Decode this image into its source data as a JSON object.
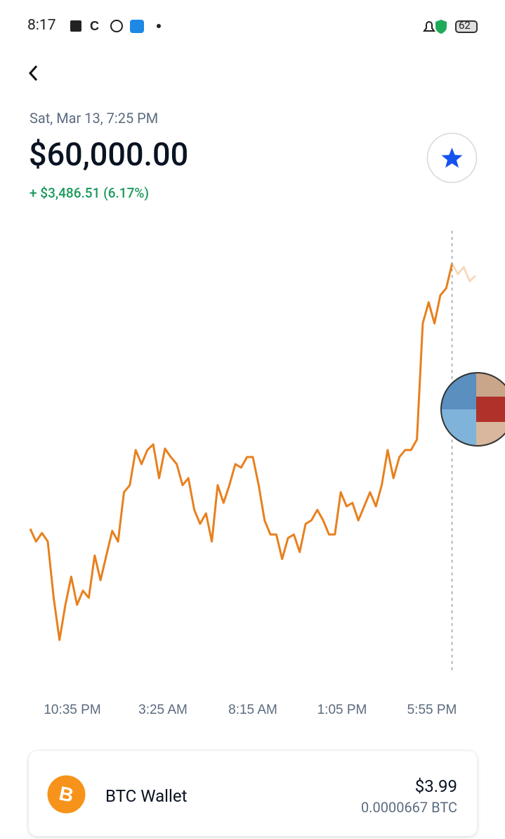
{
  "status_bar": {
    "time": "8:17",
    "battery": "62"
  },
  "header": {
    "date": "Sat, Mar 13, 7:25 PM",
    "price": "$60,000.00",
    "change": "+ $3,486.51 (6.17%)"
  },
  "chart_data": {
    "type": "line",
    "color": "#e8801e",
    "values": [
      56541,
      56375,
      56486,
      56375,
      55641,
      55090,
      55549,
      55916,
      55549,
      55733,
      55641,
      56192,
      55870,
      56192,
      56513,
      56375,
      57018,
      57110,
      57569,
      57385,
      57569,
      57642,
      57202,
      57587,
      57477,
      57385,
      57110,
      57202,
      56788,
      56605,
      56743,
      56375,
      57110,
      56880,
      57110,
      57385,
      57339,
      57477,
      57477,
      57110,
      56651,
      56467,
      56467,
      56146,
      56421,
      56467,
      56238,
      56605,
      56651,
      56788,
      56651,
      56467,
      56467,
      57018,
      56834,
      56880,
      56651,
      56834,
      57018,
      56834,
      57110,
      57569,
      57202,
      57477,
      57569,
      57569,
      57706,
      59221,
      59497,
      59221,
      59588,
      59680,
      60000,
      59864,
      59956,
      59772,
      59845
    ],
    "x_labels": [
      "10:35 PM",
      "3:25 AM",
      "8:15 AM",
      "1:05 PM",
      "5:55 PM"
    ]
  },
  "wallet": {
    "name": "BTC Wallet",
    "balance": "$3.99",
    "amount": "0.0000667 BTC"
  }
}
